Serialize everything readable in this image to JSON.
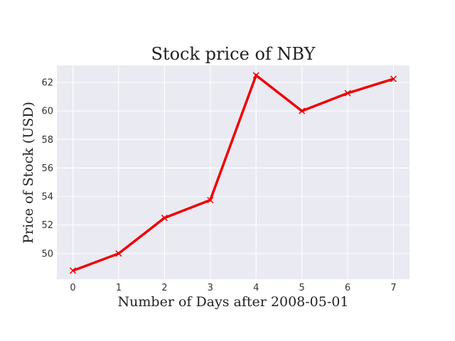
{
  "chart_data": {
    "type": "line",
    "title": "Stock price of NBY",
    "xlabel": "Number of Days after 2008-05-01",
    "ylabel": "Price of Stock (USD)",
    "x": [
      0,
      1,
      2,
      3,
      4,
      5,
      6,
      7
    ],
    "series": [
      {
        "values": [
          48.8,
          50.0,
          52.5,
          53.75,
          62.5,
          60.0,
          61.25,
          62.25
        ],
        "marker": "x"
      }
    ],
    "xlim": [
      -0.35,
      7.35
    ],
    "ylim": [
      48.2,
      63.2
    ],
    "xticks": [
      "0",
      "1",
      "2",
      "3",
      "4",
      "5",
      "6",
      "7"
    ],
    "yticks": [
      "50",
      "52",
      "54",
      "56",
      "58",
      "60",
      "62"
    ],
    "grid": true,
    "legend": "none",
    "colors": {
      "line": "#ee0000",
      "background": "#eaeaf2",
      "grid": "#ffffff"
    }
  }
}
